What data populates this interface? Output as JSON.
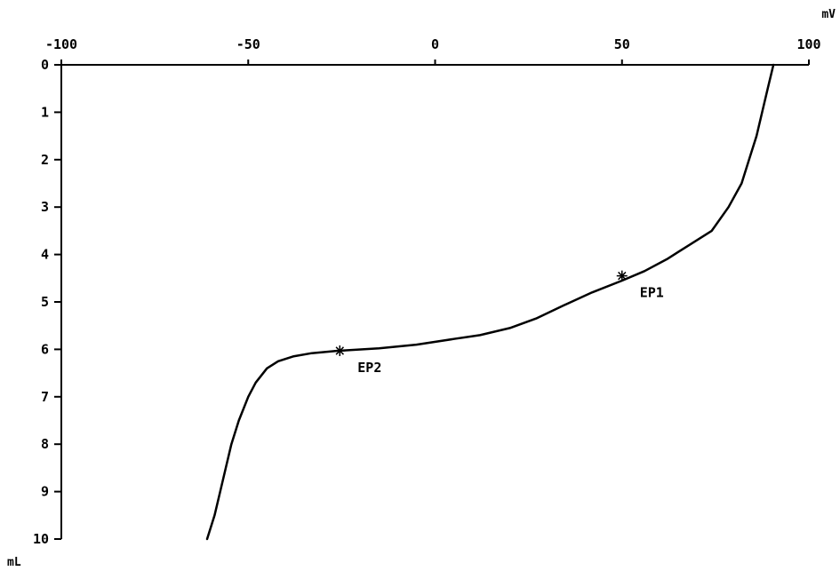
{
  "chart_data": {
    "type": "line",
    "title": "",
    "xlabel": "mV",
    "ylabel": "mL",
    "xlim": [
      -100,
      100
    ],
    "ylim": [
      0,
      10
    ],
    "x_axis_position": "top",
    "y_axis_inverted": true,
    "grid": false,
    "x_ticks": [
      -100,
      -50,
      0,
      50,
      100
    ],
    "x_tick_labels": [
      "-100",
      "-50",
      "0",
      "50",
      "100"
    ],
    "y_ticks": [
      0,
      1,
      2,
      3,
      4,
      5,
      6,
      7,
      8,
      9,
      10
    ],
    "y_tick_labels": [
      "0",
      "1",
      "2",
      "3",
      "4",
      "5",
      "6",
      "7",
      "8",
      "9",
      "10"
    ],
    "series": [
      {
        "color": "#000000",
        "points": [
          [
            90.5,
            0.0
          ],
          [
            89.0,
            0.5
          ],
          [
            87.5,
            1.0
          ],
          [
            86.0,
            1.5
          ],
          [
            84.0,
            2.0
          ],
          [
            82.0,
            2.5
          ],
          [
            78.5,
            3.0
          ],
          [
            74.0,
            3.5
          ],
          [
            68.0,
            3.8
          ],
          [
            62.0,
            4.1
          ],
          [
            56.0,
            4.35
          ],
          [
            50.0,
            4.55
          ],
          [
            42.0,
            4.8
          ],
          [
            35.0,
            5.05
          ],
          [
            27.0,
            5.35
          ],
          [
            20.0,
            5.55
          ],
          [
            12.0,
            5.7
          ],
          [
            5.0,
            5.78
          ],
          [
            -5.0,
            5.9
          ],
          [
            -15.0,
            5.98
          ],
          [
            -26.0,
            6.03
          ],
          [
            -33.0,
            6.08
          ],
          [
            -38.0,
            6.15
          ],
          [
            -42.0,
            6.25
          ],
          [
            -45.0,
            6.4
          ],
          [
            -48.0,
            6.7
          ],
          [
            -50.0,
            7.0
          ],
          [
            -52.5,
            7.5
          ],
          [
            -54.5,
            8.0
          ],
          [
            -56.0,
            8.5
          ],
          [
            -57.5,
            9.0
          ],
          [
            -59.0,
            9.5
          ],
          [
            -61.0,
            10.0
          ]
        ]
      }
    ],
    "annotations": [
      {
        "label": "EP1",
        "x": 50,
        "y": 4.45
      },
      {
        "label": "EP2",
        "x": -25.5,
        "y": 6.03
      }
    ]
  }
}
